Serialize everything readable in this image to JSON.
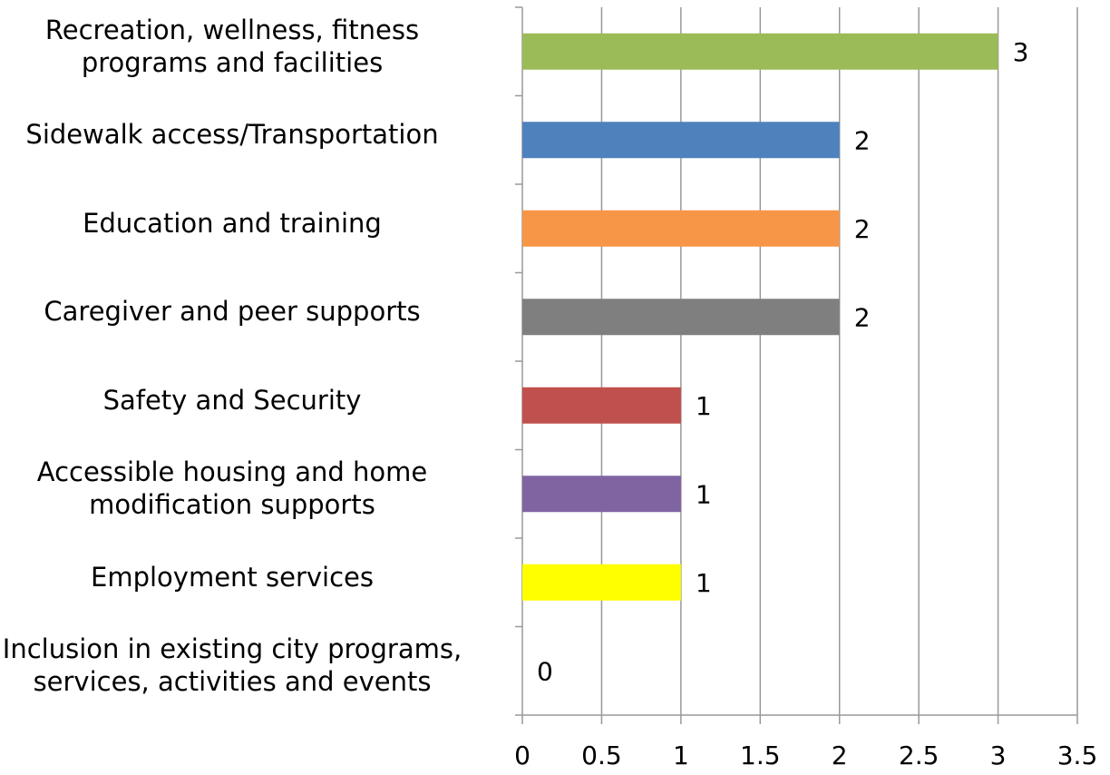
{
  "chart_data": {
    "type": "bar",
    "orientation": "horizontal",
    "categories": [
      "Recreation, wellness, fitness\nprograms and facilities",
      "Sidewalk access/Transportation",
      "Education and training",
      "Caregiver and peer supports",
      "Safety and Security",
      "Accessible housing and home\nmodification supports",
      "Employment services",
      "Inclusion in existing city programs,\nservices, activities and events"
    ],
    "values": [
      3,
      2,
      2,
      2,
      1,
      1,
      1,
      0
    ],
    "colors": [
      "#9bbb59",
      "#4f81bd",
      "#f79646",
      "#7f7f7f",
      "#c0504d",
      "#8064a2",
      "#ffff00",
      "#4bacc6"
    ],
    "xlim": [
      0,
      3.5
    ],
    "xticks": [
      0,
      0.5,
      1,
      1.5,
      2,
      2.5,
      3,
      3.5
    ],
    "grid": true
  }
}
